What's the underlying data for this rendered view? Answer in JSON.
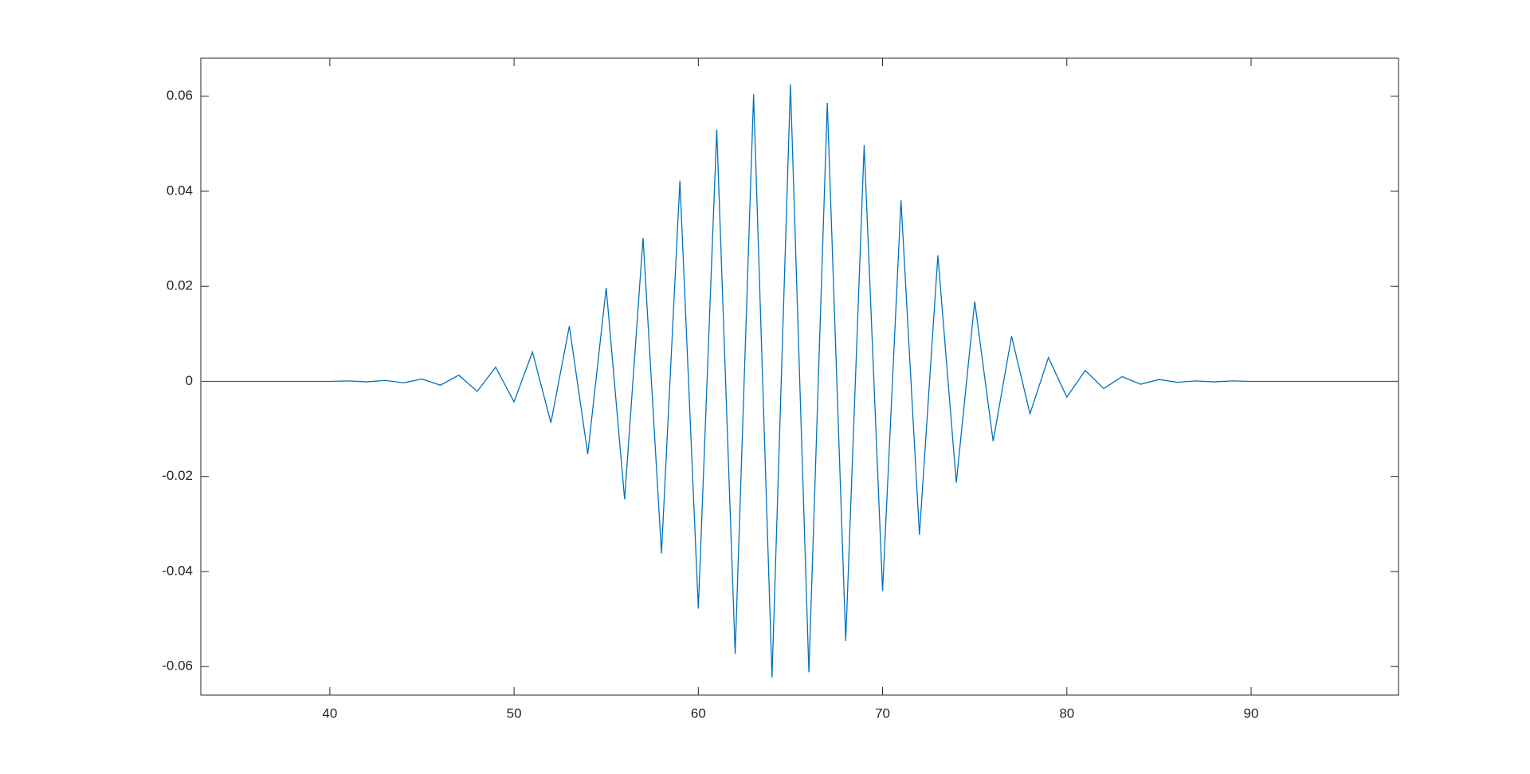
{
  "chart_data": {
    "type": "line",
    "x": [
      33,
      34,
      35,
      36,
      37,
      38,
      39,
      40,
      41,
      42,
      43,
      44,
      45,
      46,
      47,
      48,
      49,
      50,
      51,
      52,
      53,
      54,
      55,
      56,
      57,
      58,
      59,
      60,
      61,
      62,
      63,
      64,
      65,
      66,
      67,
      68,
      69,
      70,
      71,
      72,
      73,
      74,
      75,
      76,
      77,
      78,
      79,
      80,
      81,
      82,
      83,
      84,
      85,
      86,
      87,
      88,
      89,
      90,
      91,
      92,
      93,
      94,
      95,
      96,
      97,
      98
    ],
    "series": [
      {
        "color": "#0072bd",
        "values": [
          0,
          0,
          0,
          0,
          0,
          0,
          0,
          0,
          0.0001,
          -0.0001,
          0.0002,
          -0.0003,
          0.0005,
          -0.0008,
          0.0013,
          -0.0021,
          0.003,
          -0.0043,
          0.0062,
          -0.0087,
          0.0116,
          -0.0153,
          0.0197,
          -0.0248,
          0.0302,
          -0.0362,
          0.0422,
          -0.0478,
          0.053,
          -0.0573,
          0.0604,
          -0.0623,
          0.0625,
          -0.0612,
          0.0586,
          -0.0546,
          0.0497,
          -0.0441,
          0.0381,
          -0.0323,
          0.0265,
          -0.0213,
          0.0168,
          -0.0126,
          0.0095,
          -0.0068,
          0.005,
          -0.0033,
          0.0023,
          -0.0015,
          0.001,
          -0.0006,
          0.0004,
          -0.0002,
          0.0001,
          -0.0001,
          0.0001,
          0,
          0,
          0,
          0,
          0,
          0,
          0,
          0,
          0
        ]
      }
    ],
    "xlim": [
      33,
      98
    ],
    "xticks": [
      40,
      50,
      60,
      70,
      80,
      90
    ],
    "ylim": [
      -0.066,
      0.068
    ],
    "yticks": [
      -0.06,
      -0.04,
      -0.02,
      0,
      0.02,
      0.04,
      0.06
    ],
    "box": true
  }
}
